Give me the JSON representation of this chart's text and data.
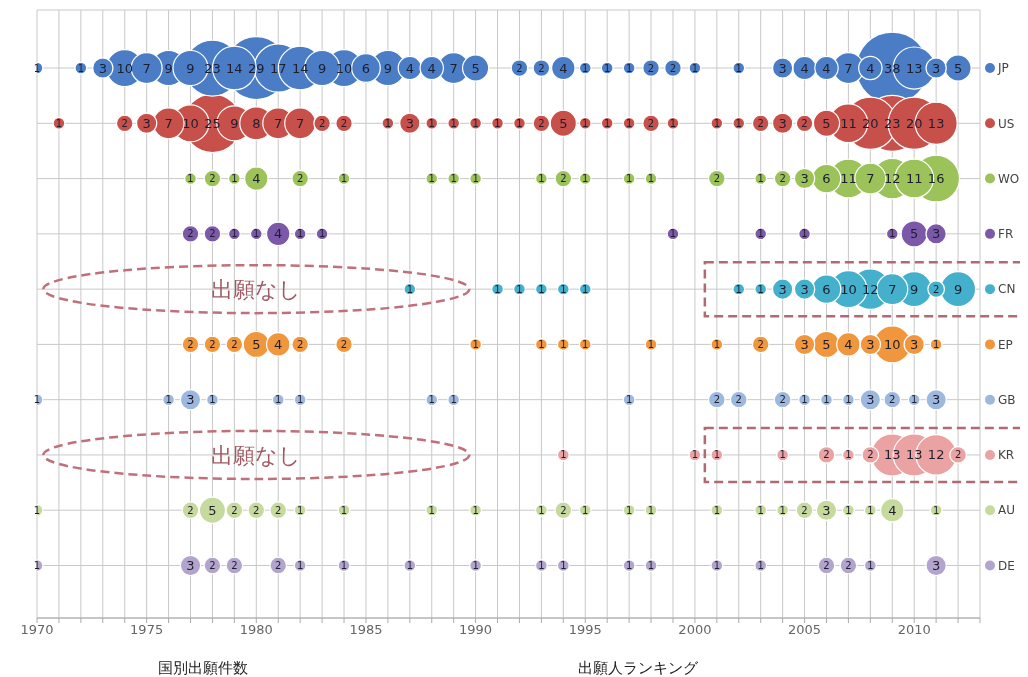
{
  "chart_data": {
    "type": "bubble",
    "orientation": "horizontal",
    "categories": [
      "JP",
      "US",
      "WO",
      "FR",
      "CN",
      "EP",
      "GB",
      "KR",
      "AU",
      "DE"
    ],
    "colors": [
      "#4a7dc5",
      "#c8504b",
      "#9cc25a",
      "#7b58a8",
      "#45b0cc",
      "#f0963c",
      "#9db8de",
      "#eba2a2",
      "#c6da9e",
      "#b2a4cc"
    ],
    "xlim": [
      1970,
      2013
    ],
    "xticks": [
      1970,
      {
        "value": 1971,
        "label": null
      },
      {
        "value": 1972,
        "label": null
      },
      {
        "value": 1973,
        "label": null
      },
      {
        "value": 1974,
        "label": null
      },
      1975,
      {
        "value": 1976,
        "label": null
      },
      {
        "value": 1977,
        "label": null
      },
      {
        "value": 1978,
        "label": null
      },
      {
        "value": 1979,
        "label": null
      },
      1980,
      {
        "value": 1981,
        "label": null
      },
      {
        "value": 1982,
        "label": null
      },
      {
        "value": 1983,
        "label": null
      },
      {
        "value": 1984,
        "label": null
      },
      1985,
      {
        "value": 1986,
        "label": null
      },
      {
        "value": 1987,
        "label": null
      },
      {
        "value": 1988,
        "label": null
      },
      {
        "value": 1989,
        "label": null
      },
      1990,
      {
        "value": 1991,
        "label": null
      },
      {
        "value": 1992,
        "label": null
      },
      {
        "value": 1993,
        "label": null
      },
      {
        "value": 1994,
        "label": null
      },
      1995,
      {
        "value": 1996,
        "label": null
      },
      {
        "value": 1997,
        "label": null
      },
      {
        "value": 1998,
        "label": null
      },
      {
        "value": 1999,
        "label": null
      },
      2000,
      {
        "value": 2001,
        "label": null
      },
      {
        "value": 2002,
        "label": null
      },
      {
        "value": 2003,
        "label": null
      },
      {
        "value": 2004,
        "label": null
      },
      2005,
      {
        "value": 2006,
        "label": null
      },
      {
        "value": 2007,
        "label": null
      },
      {
        "value": 2008,
        "label": null
      },
      {
        "value": 2009,
        "label": null
      },
      2010,
      {
        "value": 2011,
        "label": null
      },
      {
        "value": 2012,
        "label": null
      },
      {
        "value": 2013,
        "label": null
      }
    ],
    "grid": true,
    "series": [
      {
        "colors": [
          "#4a7dc5",
          null,
          null,
          null,
          null,
          null,
          "#9db8de",
          null,
          "#c6da9e",
          "#b2a4cc"
        ],
        "values": [
          1970,
          null,
          null,
          null,
          null,
          null,
          1970,
          null,
          1970,
          1970
        ],
        "sizes": [
          1,
          null,
          null,
          null,
          null,
          null,
          1,
          null,
          1,
          1
        ],
        "value_labels": [
          "1",
          null,
          null,
          null,
          null,
          null,
          "1",
          null,
          "1",
          "1"
        ]
      },
      {
        "colors": [
          null,
          "#c8504b",
          null,
          null,
          null,
          null,
          null,
          null,
          null,
          null
        ],
        "values": [
          null,
          1971,
          null,
          null,
          null,
          null,
          null,
          null,
          null,
          null
        ],
        "sizes": [
          null,
          1,
          null,
          null,
          null,
          null,
          null,
          null,
          null,
          null
        ],
        "value_labels": [
          null,
          "1",
          null,
          null,
          null,
          null,
          null,
          null,
          null,
          null
        ]
      },
      {
        "colors": [
          "#4a7dc5",
          null,
          null,
          null,
          null,
          null,
          null,
          null,
          null,
          null
        ],
        "values": [
          1972,
          null,
          null,
          null,
          null,
          null,
          null,
          null,
          null,
          null
        ],
        "sizes": [
          1,
          null,
          null,
          null,
          null,
          null,
          null,
          null,
          null,
          null
        ],
        "value_labels": [
          "1",
          null,
          null,
          null,
          null,
          null,
          null,
          null,
          null,
          null
        ]
      },
      {
        "colors": [
          "#4a7dc5",
          null,
          null,
          null,
          null,
          null,
          null,
          null,
          null,
          null
        ],
        "values": [
          1973,
          null,
          null,
          null,
          null,
          null,
          null,
          null,
          null,
          null
        ],
        "sizes": [
          3,
          null,
          null,
          null,
          null,
          null,
          null,
          null,
          null,
          null
        ],
        "value_labels": [
          "3",
          null,
          null,
          null,
          null,
          null,
          null,
          null,
          null,
          null
        ]
      },
      {
        "colors": [
          "#4a7dc5",
          "#c8504b",
          null,
          null,
          null,
          null,
          null,
          null,
          null,
          null
        ],
        "values": [
          1974,
          1974,
          null,
          null,
          null,
          null,
          null,
          null,
          null,
          null
        ],
        "sizes": [
          10,
          2,
          null,
          null,
          null,
          null,
          null,
          null,
          null,
          null
        ],
        "value_labels": [
          "10",
          "2",
          null,
          null,
          null,
          null,
          null,
          null,
          null,
          null
        ]
      },
      {
        "colors": [
          "#4a7dc5",
          "#c8504b",
          null,
          null,
          null,
          null,
          null,
          null,
          null,
          null
        ],
        "values": [
          1975,
          1975,
          null,
          null,
          null,
          null,
          null,
          null,
          null,
          null
        ],
        "sizes": [
          7,
          3,
          null,
          null,
          null,
          null,
          null,
          null,
          null,
          null
        ],
        "value_labels": [
          "7",
          "3",
          null,
          null,
          null,
          null,
          null,
          null,
          null,
          null
        ]
      },
      {
        "colors": [
          "#4a7dc5",
          "#c8504b",
          null,
          null,
          null,
          null,
          "#9db8de",
          null,
          null,
          null
        ],
        "values": [
          1976,
          1976,
          null,
          null,
          null,
          null,
          1976,
          null,
          null,
          null
        ],
        "sizes": [
          9,
          7,
          null,
          null,
          null,
          null,
          1,
          null,
          null,
          null
        ],
        "value_labels": [
          "9",
          "7",
          null,
          null,
          null,
          null,
          "1",
          null,
          null,
          null
        ]
      },
      {
        "colors": [
          "#4a7dc5",
          "#c8504b",
          "#9cc25a",
          "#7b58a8",
          null,
          "#f0963c",
          "#9db8de",
          null,
          "#c6da9e",
          "#b2a4cc"
        ],
        "values": [
          1977,
          1977,
          1977,
          1977,
          null,
          1977,
          1977,
          null,
          1977,
          1977
        ],
        "sizes": [
          9,
          10,
          1,
          2,
          null,
          2,
          3,
          null,
          2,
          3
        ],
        "value_labels": [
          "9",
          "10",
          "1",
          "2",
          null,
          "2",
          "3",
          null,
          "2",
          "3"
        ]
      },
      {
        "colors": [
          "#4a7dc5",
          "#c8504b",
          "#9cc25a",
          "#7b58a8",
          null,
          "#f0963c",
          "#9db8de",
          null,
          "#c6da9e",
          "#b2a4cc"
        ],
        "values": [
          1978,
          1978,
          1978,
          1978,
          null,
          1978,
          1978,
          null,
          1978,
          1978
        ],
        "sizes": [
          23,
          25,
          2,
          2,
          null,
          2,
          1,
          null,
          5,
          2
        ],
        "value_labels": [
          "23",
          "25",
          "2",
          "2",
          null,
          "2",
          "1",
          null,
          "5",
          "2"
        ]
      },
      {
        "colors": [
          "#4a7dc5",
          "#c8504b",
          "#9cc25a",
          "#7b58a8",
          null,
          "#f0963c",
          null,
          null,
          "#c6da9e",
          "#b2a4cc"
        ],
        "values": [
          1979,
          1979,
          1979,
          1979,
          null,
          1979,
          null,
          null,
          1979,
          1979
        ],
        "sizes": [
          14,
          9,
          1,
          1,
          null,
          2,
          null,
          null,
          2,
          2
        ],
        "value_labels": [
          "14",
          "9",
          "1",
          "1",
          null,
          "2",
          null,
          null,
          "2",
          "2"
        ]
      },
      {
        "colors": [
          "#4a7dc5",
          "#c8504b",
          "#9cc25a",
          "#7b58a8",
          null,
          "#f0963c",
          null,
          null,
          "#c6da9e",
          null
        ],
        "values": [
          1980,
          1980,
          1980,
          1980,
          null,
          1980,
          null,
          null,
          1980,
          null
        ],
        "sizes": [
          29,
          8,
          4,
          1,
          null,
          5,
          null,
          null,
          2,
          null
        ],
        "value_labels": [
          "29",
          "8",
          "4",
          "1",
          null,
          "5",
          null,
          null,
          "2",
          null
        ]
      },
      {
        "colors": [
          "#4a7dc5",
          "#c8504b",
          null,
          "#7b58a8",
          null,
          "#f0963c",
          "#9db8de",
          null,
          "#c6da9e",
          "#b2a4cc"
        ],
        "values": [
          1981,
          1981,
          null,
          1981,
          null,
          1981,
          1981,
          null,
          1981,
          1981
        ],
        "sizes": [
          17,
          7,
          null,
          4,
          null,
          4,
          1,
          null,
          2,
          2
        ],
        "value_labels": [
          "17",
          "7",
          null,
          "4",
          null,
          "4",
          "1",
          null,
          "2",
          "2"
        ]
      },
      {
        "colors": [
          "#4a7dc5",
          "#c8504b",
          "#9cc25a",
          "#7b58a8",
          null,
          "#f0963c",
          "#9db8de",
          null,
          "#c6da9e",
          "#b2a4cc"
        ],
        "values": [
          1982,
          1982,
          1982,
          1982,
          null,
          1982,
          1982,
          null,
          1982,
          1982
        ],
        "sizes": [
          14,
          7,
          2,
          1,
          null,
          2,
          1,
          null,
          1,
          1
        ],
        "value_labels": [
          "14",
          "7",
          "2",
          "1",
          null,
          "2",
          "1",
          null,
          "1",
          "1"
        ]
      },
      {
        "colors": [
          "#4a7dc5",
          "#c8504b",
          null,
          "#7b58a8",
          null,
          null,
          null,
          null,
          null,
          null
        ],
        "values": [
          1983,
          1983,
          null,
          1983,
          null,
          null,
          null,
          null,
          null,
          null
        ],
        "sizes": [
          9,
          2,
          null,
          1,
          null,
          null,
          null,
          null,
          null,
          null
        ],
        "value_labels": [
          "9",
          "2",
          null,
          "1",
          null,
          null,
          null,
          null,
          null,
          null
        ]
      },
      {
        "colors": [
          "#4a7dc5",
          "#c8504b",
          "#9cc25a",
          null,
          null,
          "#f0963c",
          null,
          null,
          "#c6da9e",
          "#b2a4cc"
        ],
        "values": [
          1984,
          1984,
          1984,
          null,
          null,
          1984,
          null,
          null,
          1984,
          1984
        ],
        "sizes": [
          10,
          2,
          1,
          null,
          null,
          2,
          null,
          null,
          1,
          1
        ],
        "value_labels": [
          "10",
          "2",
          "1",
          null,
          null,
          "2",
          null,
          null,
          "1",
          "1"
        ]
      },
      {
        "colors": [
          "#4a7dc5",
          null,
          null,
          null,
          null,
          null,
          null,
          null,
          null,
          null
        ],
        "values": [
          1985,
          null,
          null,
          null,
          null,
          null,
          null,
          null,
          null,
          null
        ],
        "sizes": [
          6,
          null,
          null,
          null,
          null,
          null,
          null,
          null,
          null,
          null
        ],
        "value_labels": [
          "6",
          null,
          null,
          null,
          null,
          null,
          null,
          null,
          null,
          null
        ]
      },
      {
        "colors": [
          "#4a7dc5",
          "#c8504b",
          null,
          null,
          null,
          null,
          null,
          null,
          null,
          null
        ],
        "values": [
          1986,
          1986,
          null,
          null,
          null,
          null,
          null,
          null,
          null,
          null
        ],
        "sizes": [
          9,
          1,
          null,
          null,
          null,
          null,
          null,
          null,
          null,
          null
        ],
        "value_labels": [
          "9",
          "1",
          null,
          null,
          null,
          null,
          null,
          null,
          null,
          null
        ]
      },
      {
        "colors": [
          "#4a7dc5",
          "#c8504b",
          null,
          null,
          "#45b0cc",
          null,
          null,
          null,
          null,
          "#b2a4cc"
        ],
        "values": [
          1987,
          1987,
          null,
          null,
          1987,
          null,
          null,
          null,
          null,
          1987
        ],
        "sizes": [
          4,
          3,
          null,
          null,
          1,
          null,
          null,
          null,
          null,
          1
        ],
        "value_labels": [
          "4",
          "3",
          null,
          null,
          "1",
          null,
          null,
          null,
          null,
          "1"
        ]
      },
      {
        "colors": [
          "#4a7dc5",
          "#c8504b",
          "#9cc25a",
          null,
          null,
          null,
          "#9db8de",
          null,
          "#c6da9e",
          null
        ],
        "values": [
          1988,
          1988,
          1988,
          null,
          null,
          null,
          1988,
          null,
          1988,
          null
        ],
        "sizes": [
          4,
          1,
          1,
          null,
          null,
          null,
          1,
          null,
          1,
          null
        ],
        "value_labels": [
          "4",
          "1",
          "1",
          null,
          null,
          null,
          "1",
          null,
          "1",
          null
        ]
      },
      {
        "colors": [
          "#4a7dc5",
          "#c8504b",
          "#9cc25a",
          null,
          null,
          null,
          "#9db8de",
          null,
          null,
          null
        ],
        "values": [
          1989,
          1989,
          1989,
          null,
          null,
          null,
          1989,
          null,
          null,
          null
        ],
        "sizes": [
          7,
          1,
          1,
          null,
          null,
          null,
          1,
          null,
          null,
          null
        ],
        "value_labels": [
          "7",
          "1",
          "1",
          null,
          null,
          null,
          "1",
          null,
          null,
          null
        ]
      },
      {
        "colors": [
          "#4a7dc5",
          "#c8504b",
          "#9cc25a",
          null,
          null,
          "#f0963c",
          null,
          null,
          "#c6da9e",
          "#b2a4cc"
        ],
        "values": [
          1990,
          1990,
          1990,
          null,
          null,
          1990,
          null,
          null,
          1990,
          1990
        ],
        "sizes": [
          5,
          1,
          1,
          null,
          null,
          1,
          null,
          null,
          1,
          1
        ],
        "value_labels": [
          "5",
          "1",
          "1",
          null,
          null,
          "1",
          null,
          null,
          "1",
          "1"
        ]
      },
      {
        "colors": [
          null,
          "#c8504b",
          null,
          null,
          "#45b0cc",
          null,
          null,
          null,
          null,
          null
        ],
        "values": [
          null,
          1991,
          null,
          null,
          1991,
          null,
          null,
          null,
          null,
          null
        ],
        "sizes": [
          null,
          1,
          null,
          null,
          1,
          null,
          null,
          null,
          null,
          null
        ],
        "value_labels": [
          null,
          "1",
          null,
          null,
          "1",
          null,
          null,
          null,
          null,
          null
        ]
      },
      {
        "colors": [
          "#4a7dc5",
          "#c8504b",
          null,
          null,
          "#45b0cc",
          null,
          null,
          null,
          null,
          null
        ],
        "values": [
          1992,
          1992,
          null,
          null,
          1992,
          null,
          null,
          null,
          null,
          null
        ],
        "sizes": [
          2,
          1,
          null,
          null,
          1,
          null,
          null,
          null,
          null,
          null
        ],
        "value_labels": [
          "2",
          "1",
          null,
          null,
          "1",
          null,
          null,
          null,
          null,
          null
        ]
      },
      {
        "colors": [
          "#4a7dc5",
          "#c8504b",
          "#9cc25a",
          null,
          "#45b0cc",
          "#f0963c",
          null,
          null,
          "#c6da9e",
          "#b2a4cc"
        ],
        "values": [
          1993,
          1993,
          1993,
          null,
          1993,
          1993,
          null,
          null,
          1993,
          1993
        ],
        "sizes": [
          2,
          2,
          1,
          null,
          1,
          1,
          null,
          null,
          1,
          1
        ],
        "value_labels": [
          "2",
          "2",
          "1",
          null,
          "1",
          "1",
          null,
          null,
          "1",
          "1"
        ]
      },
      {
        "colors": [
          "#4a7dc5",
          "#c8504b",
          "#9cc25a",
          null,
          "#45b0cc",
          "#f0963c",
          null,
          "#eba2a2",
          "#c6da9e",
          "#b2a4cc"
        ],
        "values": [
          1994,
          1994,
          1994,
          null,
          1994,
          1994,
          null,
          1994,
          1994,
          1994
        ],
        "sizes": [
          4,
          5,
          2,
          null,
          1,
          1,
          null,
          1,
          2,
          1
        ],
        "value_labels": [
          "4",
          "5",
          "2",
          null,
          "1",
          "1",
          null,
          "1",
          "2",
          "1"
        ]
      },
      {
        "colors": [
          "#4a7dc5",
          "#c8504b",
          "#9cc25a",
          null,
          "#45b0cc",
          "#f0963c",
          null,
          null,
          "#c6da9e",
          null
        ],
        "values": [
          1995,
          1995,
          1995,
          null,
          1995,
          1995,
          null,
          null,
          1995,
          null
        ],
        "sizes": [
          1,
          1,
          1,
          null,
          1,
          1,
          null,
          null,
          1,
          null
        ],
        "value_labels": [
          "1",
          "1",
          "1",
          null,
          "1",
          "1",
          null,
          null,
          "1",
          null
        ]
      },
      {
        "colors": [
          "#4a7dc5",
          "#c8504b",
          null,
          null,
          null,
          null,
          null,
          null,
          null,
          null
        ],
        "values": [
          1996,
          1996,
          null,
          null,
          null,
          null,
          null,
          null,
          null,
          null
        ],
        "sizes": [
          1,
          1,
          null,
          null,
          null,
          null,
          null,
          null,
          null,
          null
        ],
        "value_labels": [
          "1",
          "1",
          null,
          null,
          null,
          null,
          null,
          null,
          null,
          null
        ]
      },
      {
        "colors": [
          "#4a7dc5",
          "#c8504b",
          "#9cc25a",
          null,
          null,
          null,
          "#9db8de",
          null,
          "#c6da9e",
          "#b2a4cc"
        ],
        "values": [
          1997,
          1997,
          1997,
          null,
          null,
          null,
          1997,
          null,
          1997,
          1997
        ],
        "sizes": [
          1,
          1,
          1,
          null,
          null,
          null,
          1,
          null,
          1,
          1
        ],
        "value_labels": [
          "1",
          "1",
          "1",
          null,
          null,
          null,
          "1",
          null,
          "1",
          "1"
        ]
      },
      {
        "colors": [
          "#4a7dc5",
          "#c8504b",
          "#9cc25a",
          null,
          null,
          "#f0963c",
          null,
          null,
          "#c6da9e",
          "#b2a4cc"
        ],
        "values": [
          1998,
          1998,
          1998,
          null,
          null,
          1998,
          null,
          null,
          1998,
          1998
        ],
        "sizes": [
          2,
          2,
          1,
          null,
          null,
          1,
          null,
          null,
          1,
          1
        ],
        "value_labels": [
          "2",
          "2",
          "1",
          null,
          null,
          "1",
          null,
          null,
          "1",
          "1"
        ]
      },
      {
        "colors": [
          "#4a7dc5",
          "#c8504b",
          null,
          "#7b58a8",
          null,
          null,
          null,
          null,
          null,
          null
        ],
        "values": [
          1999,
          1999,
          null,
          1999,
          null,
          null,
          null,
          null,
          null,
          null
        ],
        "sizes": [
          2,
          1,
          null,
          1,
          null,
          null,
          null,
          null,
          null,
          null
        ],
        "value_labels": [
          "2",
          "1",
          null,
          "1",
          null,
          null,
          null,
          null,
          null,
          null
        ]
      },
      {
        "colors": [
          "#4a7dc5",
          null,
          null,
          null,
          null,
          null,
          null,
          "#eba2a2",
          null,
          null
        ],
        "values": [
          2000,
          null,
          null,
          null,
          null,
          null,
          null,
          2000,
          null,
          null
        ],
        "sizes": [
          1,
          null,
          null,
          null,
          null,
          null,
          null,
          1,
          null,
          null
        ],
        "value_labels": [
          "1",
          null,
          null,
          null,
          null,
          null,
          null,
          "1",
          null,
          null
        ]
      },
      {
        "colors": [
          null,
          "#c8504b",
          "#9cc25a",
          null,
          null,
          "#f0963c",
          "#9db8de",
          "#eba2a2",
          "#c6da9e",
          "#b2a4cc"
        ],
        "values": [
          null,
          2001,
          2001,
          null,
          null,
          2001,
          2001,
          2001,
          2001,
          2001
        ],
        "sizes": [
          null,
          1,
          2,
          null,
          null,
          1,
          2,
          1,
          1,
          1
        ],
        "value_labels": [
          null,
          "1",
          "2",
          null,
          null,
          "1",
          "2",
          "1",
          "1",
          "1"
        ]
      },
      {
        "colors": [
          "#4a7dc5",
          "#c8504b",
          null,
          null,
          "#45b0cc",
          null,
          "#9db8de",
          null,
          null,
          null
        ],
        "values": [
          2002,
          2002,
          null,
          null,
          2002,
          null,
          2002,
          null,
          null,
          null
        ],
        "sizes": [
          1,
          1,
          null,
          null,
          1,
          null,
          2,
          null,
          null,
          null
        ],
        "value_labels": [
          "1",
          "1",
          null,
          null,
          "1",
          null,
          "2",
          null,
          null,
          null
        ]
      },
      {
        "colors": [
          null,
          "#c8504b",
          "#9cc25a",
          "#7b58a8",
          "#45b0cc",
          "#f0963c",
          null,
          null,
          "#c6da9e",
          "#b2a4cc"
        ],
        "values": [
          null,
          2003,
          2003,
          2003,
          2003,
          2003,
          null,
          null,
          2003,
          2003
        ],
        "sizes": [
          null,
          2,
          1,
          1,
          1,
          2,
          null,
          null,
          1,
          1
        ],
        "value_labels": [
          null,
          "2",
          "1",
          "1",
          "1",
          "2",
          null,
          null,
          "1",
          "1"
        ]
      },
      {
        "colors": [
          "#4a7dc5",
          "#c8504b",
          "#9cc25a",
          null,
          "#45b0cc",
          null,
          "#9db8de",
          "#eba2a2",
          "#c6da9e",
          null
        ],
        "values": [
          2004,
          2004,
          2004,
          null,
          2004,
          null,
          2004,
          2004,
          2004,
          null
        ],
        "sizes": [
          3,
          3,
          2,
          null,
          3,
          null,
          2,
          1,
          1,
          null
        ],
        "value_labels": [
          "3",
          "3",
          "2",
          null,
          "3",
          null,
          "2",
          "1",
          "1",
          null
        ]
      },
      {
        "colors": [
          "#4a7dc5",
          "#c8504b",
          "#9cc25a",
          "#7b58a8",
          "#45b0cc",
          "#f0963c",
          "#9db8de",
          null,
          "#c6da9e",
          null
        ],
        "values": [
          2005,
          2005,
          2005,
          2005,
          2005,
          2005,
          2005,
          null,
          2005,
          null
        ],
        "sizes": [
          4,
          2,
          3,
          1,
          3,
          3,
          1,
          null,
          2,
          null
        ],
        "value_labels": [
          "4",
          "2",
          "3",
          "1",
          "3",
          "3",
          "1",
          null,
          "2",
          null
        ]
      },
      {
        "colors": [
          "#4a7dc5",
          "#c8504b",
          "#9cc25a",
          null,
          "#45b0cc",
          "#f0963c",
          "#9db8de",
          "#eba2a2",
          "#c6da9e",
          "#b2a4cc"
        ],
        "values": [
          2006,
          2006,
          2006,
          null,
          2006,
          2006,
          2006,
          2006,
          2006,
          2006
        ],
        "sizes": [
          4,
          5,
          6,
          null,
          6,
          5,
          1,
          2,
          3,
          2
        ],
        "value_labels": [
          "4",
          "5",
          "6",
          null,
          "6",
          "5",
          "1",
          "2",
          "3",
          "2"
        ]
      },
      {
        "colors": [
          "#4a7dc5",
          "#c8504b",
          "#9cc25a",
          null,
          "#45b0cc",
          "#f0963c",
          "#9db8de",
          "#eba2a2",
          "#c6da9e",
          "#b2a4cc"
        ],
        "values": [
          2007,
          2007,
          2007,
          null,
          2007,
          2007,
          2007,
          2007,
          2007,
          2007
        ],
        "sizes": [
          7,
          11,
          11,
          null,
          10,
          4,
          1,
          1,
          1,
          2
        ],
        "value_labels": [
          "7",
          "11",
          "11",
          null,
          "10",
          "4",
          "1",
          "1",
          "1",
          "2"
        ]
      },
      {
        "colors": [
          "#4a7dc5",
          "#c8504b",
          "#9cc25a",
          null,
          "#45b0cc",
          "#f0963c",
          "#9db8de",
          "#eba2a2",
          "#c6da9e",
          "#b2a4cc"
        ],
        "values": [
          2008,
          2008,
          2008,
          null,
          2008,
          2008,
          2008,
          2008,
          2008,
          2008
        ],
        "sizes": [
          4,
          20,
          7,
          null,
          12,
          3,
          3,
          2,
          1,
          1
        ],
        "value_labels": [
          "4",
          "20",
          "7",
          null,
          "12",
          "3",
          "3",
          "2",
          "1",
          "1"
        ]
      },
      {
        "colors": [
          "#4a7dc5",
          "#c8504b",
          "#9cc25a",
          "#7b58a8",
          "#45b0cc",
          "#f0963c",
          "#9db8de",
          "#eba2a2",
          "#c6da9e",
          null
        ],
        "values": [
          2009,
          2009,
          2009,
          2009,
          2009,
          2009,
          2009,
          2009,
          2009,
          null
        ],
        "sizes": [
          38,
          23,
          12,
          1,
          7,
          10,
          2,
          13,
          4,
          null
        ],
        "value_labels": [
          "38",
          "23",
          "12",
          "1",
          "7",
          "10",
          "2",
          "13",
          "4",
          null
        ]
      },
      {
        "colors": [
          "#4a7dc5",
          "#c8504b",
          "#9cc25a",
          "#7b58a8",
          "#45b0cc",
          "#f0963c",
          "#9db8de",
          "#eba2a2",
          null,
          null
        ],
        "values": [
          2010,
          2010,
          2010,
          2010,
          2010,
          2010,
          2010,
          2010,
          null,
          null
        ],
        "sizes": [
          13,
          20,
          11,
          5,
          9,
          3,
          1,
          13,
          null,
          null
        ],
        "value_labels": [
          "13",
          "20",
          "11",
          "5",
          "9",
          "3",
          "1",
          "13",
          null,
          null
        ]
      },
      {
        "colors": [
          "#4a7dc5",
          "#c8504b",
          "#9cc25a",
          "#7b58a8",
          "#45b0cc",
          "#f0963c",
          "#9db8de",
          "#eba2a2",
          "#c6da9e",
          "#b2a4cc"
        ],
        "values": [
          2011,
          2011,
          2011,
          2011,
          2011,
          2011,
          2011,
          2011,
          2011,
          2011
        ],
        "sizes": [
          3,
          13,
          16,
          3,
          2,
          1,
          3,
          12,
          1,
          3
        ],
        "value_labels": [
          "3",
          "13",
          "16",
          "3",
          "2",
          "1",
          "3",
          "12",
          "1",
          "3"
        ]
      },
      {
        "colors": [
          "#4a7dc5",
          null,
          null,
          null,
          "#45b0cc",
          null,
          null,
          "#eba2a2",
          null,
          null
        ],
        "values": [
          2012,
          null,
          null,
          null,
          2012,
          null,
          null,
          2012,
          null,
          null
        ],
        "sizes": [
          5,
          null,
          null,
          null,
          9,
          null,
          null,
          2,
          null,
          null
        ],
        "value_labels": [
          "5",
          null,
          null,
          null,
          "9",
          null,
          null,
          "2",
          null,
          null
        ]
      }
    ],
    "annotations": [
      "出願なし",
      "出願なし",
      "国別出願件数",
      "出願人ランキング"
    ]
  }
}
